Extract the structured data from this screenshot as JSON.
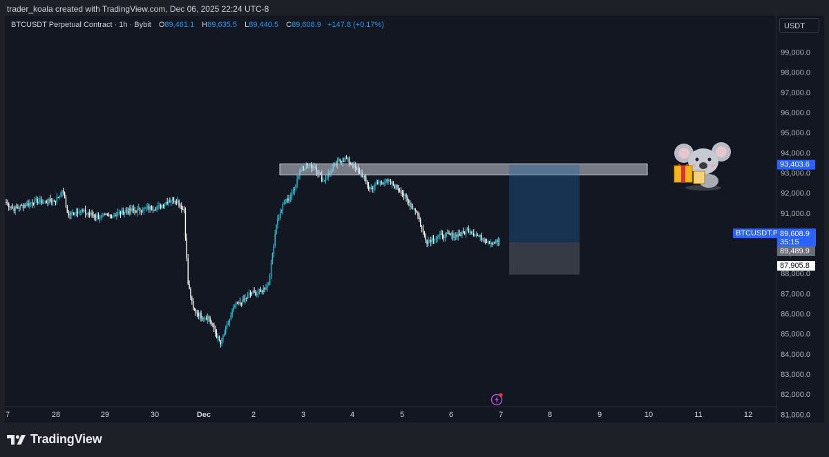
{
  "caption": "trader_koala created with TradingView.com, Dec 06, 2025 22:24 UTC-8",
  "legend": {
    "symbol": "BTCUSDT Perpetual Contract · 1h · Bybit",
    "open_label": "O",
    "open": "89,461.1",
    "high_label": "H",
    "high": "89,635.5",
    "low_label": "L",
    "low": "89,440.5",
    "close_label": "C",
    "close": "89,608.9",
    "change": "+147.8 (+0.17%)"
  },
  "currency": "USDT",
  "footer": {
    "brand": "TradingView",
    "logo_icon": "tradingview-logo-icon"
  },
  "price_tags": {
    "zone_top": "93,403.6",
    "symbol_tag": "BTCUSDT.P",
    "last_price": "89,608.9",
    "countdown": "35:15",
    "stop_price": "89,489.9",
    "lower_level": "87,905.8"
  },
  "colors": {
    "up": "#26c6da",
    "down": "#ffffff",
    "background": "#131722",
    "accent": "#2962ff",
    "zone": "rgba(200,205,215,0.55)",
    "target": "rgba(33,100,170,0.35)",
    "stop": "rgba(120,123,134,0.35)"
  },
  "chart_data": {
    "type": "candlestick",
    "title": "BTCUSDT Perpetual Contract · 1h · Bybit",
    "y_ticks": [
      "99,000.0",
      "98,000.0",
      "97,000.0",
      "96,000.0",
      "95,000.0",
      "94,000.0",
      "93,000.0",
      "92,000.0",
      "91,000.0",
      "90,000.0",
      "89,000.0",
      "88,000.0",
      "87,000.0",
      "86,000.0",
      "85,000.0",
      "84,000.0",
      "83,000.0",
      "82,000.0",
      "81,000.0"
    ],
    "x_ticks": [
      "7",
      "28",
      "29",
      "30",
      "Dec",
      "2",
      "3",
      "4",
      "5",
      "6",
      "7",
      "8",
      "9",
      "10",
      "11",
      "12"
    ],
    "ylim": [
      80600,
      100800
    ],
    "anchors": [
      [
        0,
        91500
      ],
      [
        6,
        91200
      ],
      [
        14,
        91400
      ],
      [
        22,
        91600
      ],
      [
        30,
        91550
      ],
      [
        38,
        91650
      ],
      [
        44,
        92100
      ],
      [
        46,
        91300
      ],
      [
        48,
        90900
      ],
      [
        56,
        91150
      ],
      [
        64,
        90950
      ],
      [
        72,
        90800
      ],
      [
        82,
        90900
      ],
      [
        92,
        91100
      ],
      [
        102,
        91150
      ],
      [
        110,
        91250
      ],
      [
        118,
        91300
      ],
      [
        124,
        91600
      ],
      [
        128,
        91700
      ],
      [
        132,
        91600
      ],
      [
        137,
        91100
      ],
      [
        140,
        87500
      ],
      [
        144,
        86200
      ],
      [
        150,
        85900
      ],
      [
        156,
        85800
      ],
      [
        162,
        84900
      ],
      [
        165,
        84500
      ],
      [
        170,
        85400
      ],
      [
        176,
        86400
      ],
      [
        182,
        86600
      ],
      [
        188,
        87000
      ],
      [
        196,
        87100
      ],
      [
        202,
        87500
      ],
      [
        208,
        90500
      ],
      [
        214,
        91500
      ],
      [
        220,
        91900
      ],
      [
        226,
        93100
      ],
      [
        232,
        93400
      ],
      [
        238,
        93300
      ],
      [
        244,
        92600
      ],
      [
        250,
        93100
      ],
      [
        256,
        93600
      ],
      [
        262,
        93700
      ],
      [
        268,
        93300
      ],
      [
        274,
        92900
      ],
      [
        280,
        92200
      ],
      [
        286,
        92500
      ],
      [
        292,
        92600
      ],
      [
        298,
        92400
      ],
      [
        304,
        92100
      ],
      [
        310,
        91500
      ],
      [
        316,
        91100
      ],
      [
        320,
        90200
      ],
      [
        324,
        89600
      ],
      [
        330,
        89800
      ],
      [
        338,
        89900
      ],
      [
        346,
        89900
      ],
      [
        352,
        90000
      ],
      [
        356,
        90200
      ],
      [
        362,
        89900
      ],
      [
        368,
        89700
      ],
      [
        374,
        89550
      ],
      [
        380,
        89608
      ]
    ],
    "candle_count": 381,
    "annotations": {
      "resistance_zone": [
        92900,
        93450
      ],
      "position": {
        "entry": 89550,
        "target": 93400,
        "stop": 87950
      }
    }
  }
}
